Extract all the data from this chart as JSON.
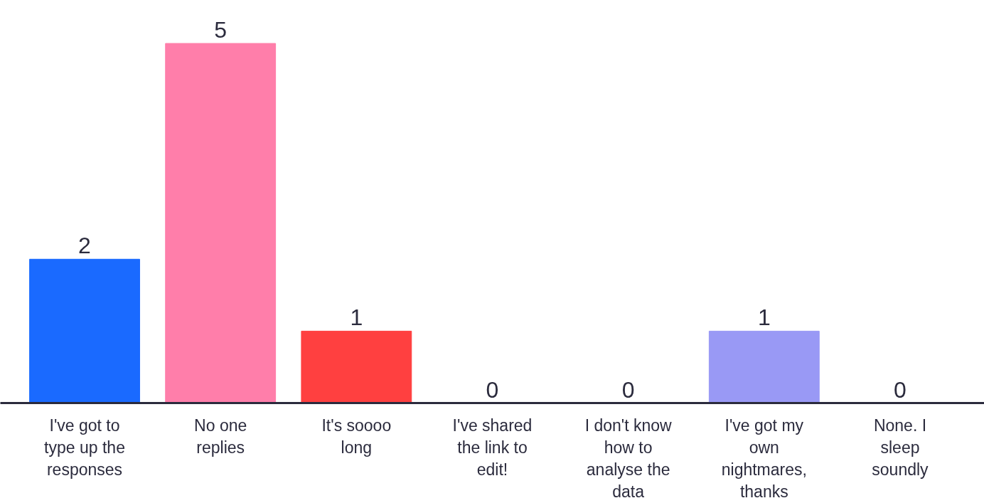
{
  "chart_data": {
    "type": "bar",
    "categories": [
      "I've got to type up the responses",
      "No one replies",
      "It's soooo long",
      "I've shared the link to edit!",
      "I don't know how to analyse the data",
      "I've got my own nightmares, thanks",
      "None. I sleep soundly"
    ],
    "values": [
      2,
      5,
      1,
      0,
      0,
      1,
      0
    ],
    "colors": [
      "#1a6aff",
      "#ff7eaa",
      "#ff4040",
      "#ffb31f",
      "#56c97c",
      "#9999f5",
      "#2b2b3d"
    ],
    "data_labels": true,
    "grid": false
  }
}
